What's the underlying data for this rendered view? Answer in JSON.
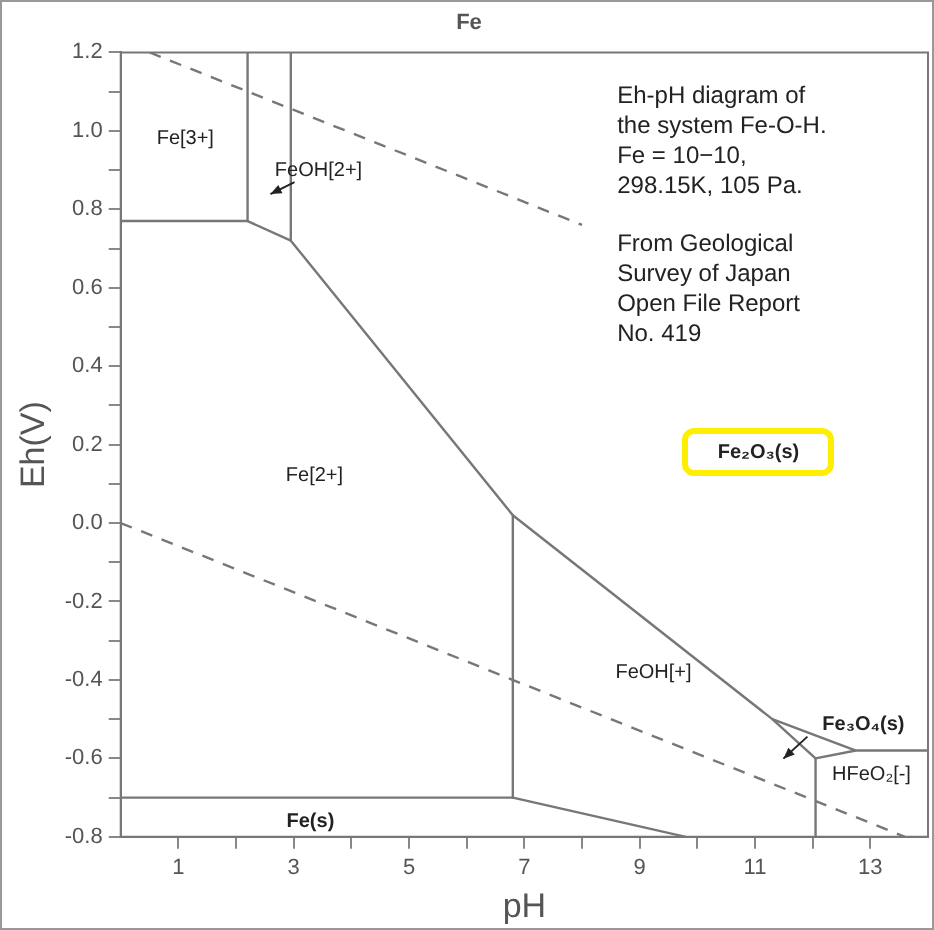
{
  "chart_data": {
    "type": "line",
    "title": "Fe",
    "xlabel": "pH",
    "ylabel": "Eh(V)",
    "xlim": [
      0,
      14
    ],
    "ylim": [
      -0.8,
      1.2
    ],
    "xticks": [
      {
        "value": 1,
        "label": "1"
      },
      {
        "value": 2,
        "label": null
      },
      {
        "value": 3,
        "label": "3"
      },
      {
        "value": 4,
        "label": null
      },
      {
        "value": 5,
        "label": "5"
      },
      {
        "value": 6,
        "label": null
      },
      {
        "value": 7,
        "label": "7"
      },
      {
        "value": 8,
        "label": null
      },
      {
        "value": 9,
        "label": "9"
      },
      {
        "value": 10,
        "label": null
      },
      {
        "value": 11,
        "label": "11"
      },
      {
        "value": 12,
        "label": null
      },
      {
        "value": 13,
        "label": "13"
      }
    ],
    "yticks": [
      {
        "value": -0.8,
        "label": "-0.8"
      },
      {
        "value": -0.7,
        "label": null
      },
      {
        "value": -0.6,
        "label": "-0.6"
      },
      {
        "value": -0.5,
        "label": null
      },
      {
        "value": -0.4,
        "label": "-0.4"
      },
      {
        "value": -0.3,
        "label": null
      },
      {
        "value": -0.2,
        "label": "-0.2"
      },
      {
        "value": -0.1,
        "label": null
      },
      {
        "value": 0,
        "label": "0.0"
      },
      {
        "value": 0.1,
        "label": null
      },
      {
        "value": 0.2,
        "label": "0.2"
      },
      {
        "value": 0.3,
        "label": null
      },
      {
        "value": 0.4,
        "label": "0.4"
      },
      {
        "value": 0.5,
        "label": null
      },
      {
        "value": 0.6,
        "label": "0.6"
      },
      {
        "value": 0.7,
        "label": null
      },
      {
        "value": 0.8,
        "label": "0.8"
      },
      {
        "value": 0.9,
        "label": null
      },
      {
        "value": 1.0,
        "label": "1.0"
      },
      {
        "value": 1.1,
        "label": null
      },
      {
        "value": 1.2,
        "label": "1.2"
      }
    ],
    "grid": false,
    "legend": false,
    "marker": "none",
    "series": [
      {
        "color": "#777777",
        "line_style": "dashed",
        "x": [
          0.5,
          8
        ],
        "values": [
          1.2,
          0.76
        ]
      },
      {
        "color": "#777777",
        "line_style": "dashed",
        "x": [
          0,
          13.6
        ],
        "values": [
          0,
          -0.8
        ]
      },
      {
        "color": "#777777",
        "line_style": "solid",
        "x": [
          0,
          2.2,
          2.2
        ],
        "values": [
          0.77,
          0.77,
          1.2
        ]
      },
      {
        "color": "#777777",
        "line_style": "solid",
        "x": [
          2.2,
          2.95,
          2.95
        ],
        "values": [
          0.77,
          0.72,
          1.2
        ]
      },
      {
        "color": "#777777",
        "line_style": "solid",
        "x": [
          2.95,
          6.8,
          11.3,
          12.05,
          12.75,
          14
        ],
        "values": [
          0.72,
          0.02,
          -0.5,
          -0.6,
          -0.58,
          -0.58
        ]
      },
      {
        "color": "#777777",
        "line_style": "solid",
        "x": [
          11.3,
          12.75
        ],
        "values": [
          -0.5,
          -0.58
        ]
      },
      {
        "color": "#777777",
        "line_style": "solid",
        "x": [
          12.05,
          12.05
        ],
        "values": [
          -0.6,
          -0.8
        ]
      },
      {
        "color": "#777777",
        "line_style": "solid",
        "x": [
          6.8,
          6.8
        ],
        "values": [
          0.02,
          -0.7
        ]
      },
      {
        "color": "#777777",
        "line_style": "solid",
        "x": [
          0,
          6.8,
          9.8
        ],
        "values": [
          -0.7,
          -0.7,
          -0.8
        ]
      }
    ],
    "annotations": [
      "Fe[3+]",
      "FeOH[2+]",
      "Fe₂O₃(s)",
      "Fe[2+]",
      "FeOH[+]",
      "Fe₃O₄(s)",
      "HFeO₂[-]",
      "Fe(s)",
      "Eh-pH diagram of\nthe system Fe-O-H.\nFe = 10−10,\n298.15K, 105 Pa.",
      "From Geological\nSurvey of Japan\nOpen File Report\nNo. 419"
    ]
  }
}
